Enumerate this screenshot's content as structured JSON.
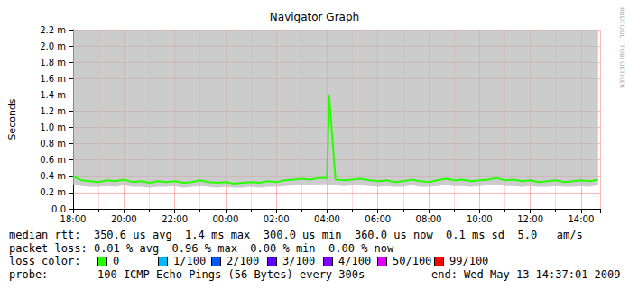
{
  "chart_data": {
    "type": "line",
    "title": "Navigator Graph",
    "y_label": "Seconds",
    "side_text": "RRDTOOL / TOBI OETIKER",
    "grid": true,
    "xlim": [
      18,
      38.75
    ],
    "xticks": [
      {
        "value": 18,
        "label": "18:00"
      },
      {
        "value": 20,
        "label": "20:00"
      },
      {
        "value": 22,
        "label": "22:00"
      },
      {
        "value": 24,
        "label": "00:00"
      },
      {
        "value": 26,
        "label": "02:00"
      },
      {
        "value": 28,
        "label": "04:00"
      },
      {
        "value": 30,
        "label": "06:00"
      },
      {
        "value": 32,
        "label": "08:00"
      },
      {
        "value": 34,
        "label": "10:00"
      },
      {
        "value": 36,
        "label": "12:00"
      },
      {
        "value": 38,
        "label": "14:00"
      }
    ],
    "ylim": [
      0,
      0.0022
    ],
    "yticks": [
      {
        "value": 0,
        "label": "0.0"
      },
      {
        "value": 0.0002,
        "label": "0.2 m"
      },
      {
        "value": 0.0004,
        "label": "0.4 m"
      },
      {
        "value": 0.0006,
        "label": "0.6 m"
      },
      {
        "value": 0.0008,
        "label": "0.8 m"
      },
      {
        "value": 0.001,
        "label": "1.0 m"
      },
      {
        "value": 0.0012,
        "label": "1.2 m"
      },
      {
        "value": 0.0014,
        "label": "1.4 m"
      },
      {
        "value": 0.0016,
        "label": "1.6 m"
      },
      {
        "value": 0.0018,
        "label": "1.8 m"
      },
      {
        "value": 0.002,
        "label": "2.0 m"
      },
      {
        "value": 0.0022,
        "label": "2.2 m"
      }
    ],
    "x": [
      18,
      18.33,
      18.67,
      19,
      19.33,
      19.67,
      20,
      20.33,
      20.67,
      21,
      21.33,
      21.67,
      22,
      22.33,
      22.67,
      23,
      23.33,
      23.67,
      24,
      24.33,
      24.67,
      25,
      25.33,
      25.67,
      26,
      26.33,
      26.67,
      27,
      27.33,
      27.67,
      28,
      28.08,
      28.33,
      28.67,
      29,
      29.33,
      29.67,
      30,
      30.33,
      30.67,
      31,
      31.33,
      31.67,
      32,
      32.33,
      32.67,
      33,
      33.33,
      33.67,
      34,
      34.33,
      34.67,
      35,
      35.33,
      35.67,
      36,
      36.33,
      36.67,
      37,
      37.33,
      37.67,
      38,
      38.33,
      38.67
    ],
    "series": [
      {
        "type": "area",
        "color": "#bbbbbb",
        "values": [
          0.0003,
          0.00028,
          0.00027,
          0.00027,
          0.00028,
          0.00027,
          0.00029,
          0.00027,
          0.00027,
          0.00026,
          0.00027,
          0.00027,
          0.00028,
          0.00026,
          0.00027,
          0.00028,
          0.00027,
          0.00026,
          0.00027,
          0.00026,
          0.00026,
          0.00027,
          0.00026,
          0.00027,
          0.00027,
          0.00028,
          0.00029,
          0.00029,
          0.00029,
          0.0003,
          0.0003,
          0.0003,
          0.00029,
          0.00028,
          0.00029,
          0.00029,
          0.00028,
          0.00027,
          0.00028,
          0.00027,
          0.00027,
          0.00029,
          0.00027,
          0.00027,
          0.00028,
          0.00029,
          0.00028,
          0.00028,
          0.00027,
          0.00028,
          0.00029,
          0.0003,
          0.00028,
          0.00028,
          0.00027,
          0.00028,
          0.00027,
          0.00027,
          0.00028,
          0.00027,
          0.00027,
          0.00028,
          0.00027,
          0.00029
        ]
      },
      {
        "type": "line",
        "color": "#26ff00",
        "values": [
          0.0004,
          0.00035,
          0.00034,
          0.00033,
          0.00035,
          0.00034,
          0.00036,
          0.00033,
          0.00034,
          0.00032,
          0.00034,
          0.00033,
          0.00034,
          0.00032,
          0.00033,
          0.00035,
          0.00033,
          0.00032,
          0.00033,
          0.00031,
          0.00032,
          0.00033,
          0.00032,
          0.00034,
          0.00033,
          0.00035,
          0.00036,
          0.00037,
          0.00036,
          0.00038,
          0.00038,
          0.0014,
          0.00036,
          0.00035,
          0.00036,
          0.00037,
          0.00035,
          0.00034,
          0.00035,
          0.00033,
          0.00034,
          0.00036,
          0.00034,
          0.00033,
          0.00035,
          0.00037,
          0.00035,
          0.00036,
          0.00034,
          0.00035,
          0.00036,
          0.00038,
          0.00035,
          0.00036,
          0.00034,
          0.00035,
          0.00033,
          0.00034,
          0.00035,
          0.00033,
          0.00034,
          0.00035,
          0.00034,
          0.00036
        ],
        "loss": [
          0,
          0,
          0,
          0,
          0,
          0,
          0,
          0,
          0,
          0,
          0,
          0,
          0,
          0,
          0,
          0,
          0,
          0,
          0,
          0,
          0,
          0,
          0,
          0,
          0,
          0,
          0,
          0,
          0,
          0,
          0,
          0,
          0,
          0,
          0,
          1,
          0,
          0,
          0,
          0,
          0,
          0,
          0,
          0,
          0,
          0,
          0,
          0,
          0,
          0,
          0,
          1,
          0,
          0,
          0,
          0,
          0,
          0,
          0,
          0,
          0,
          0,
          0,
          0
        ]
      }
    ],
    "stats": [
      "median rtt:  350.6 us avg  1.4 ms max  300.0 us min  360.0 us now  0.1 ms sd  5.0   am/s",
      "packet loss: 0.01 % avg  0.96 % max  0.00 % min  0.00 % now"
    ],
    "loss_title": "loss color:",
    "loss_colors": [
      {
        "value": 0,
        "label": "0",
        "color": "#26ff00"
      },
      {
        "value": 1,
        "label": "1/100",
        "color": "#00b8ff"
      },
      {
        "value": 2,
        "label": "2/100",
        "color": "#0059ff"
      },
      {
        "value": 3,
        "label": "3/100",
        "color": "#5e00ff"
      },
      {
        "value": 4,
        "label": "4/100",
        "color": "#7e00ff"
      },
      {
        "value": 50,
        "label": "50/100",
        "color": "#dd00ff"
      },
      {
        "value": 99,
        "label": "99/100",
        "color": "#ff0000"
      }
    ],
    "probe_title": "probe:",
    "probe": "100 ICMP Echo Pings (56 Bytes) every 300s",
    "end": "end: Wed May 13 14:37:01 2009"
  }
}
